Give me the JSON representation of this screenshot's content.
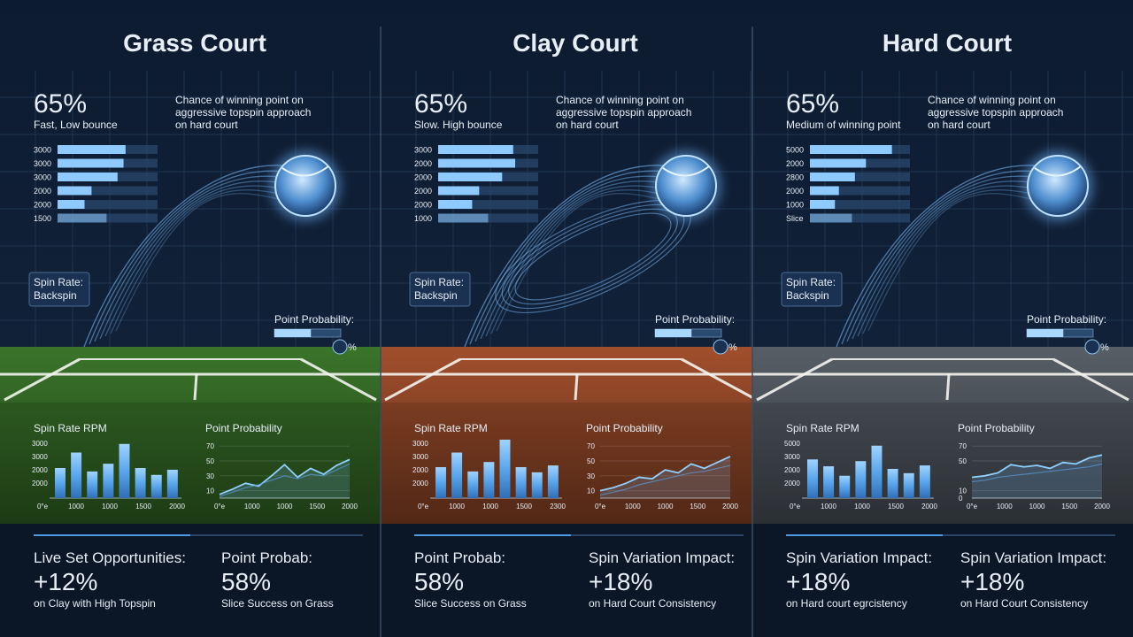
{
  "panels": [
    {
      "title": "Grass Court",
      "stat": "65%",
      "stat_caption": "Fast, Low bounce",
      "description": [
        "Chance of winning point on",
        "aggressive topspin approach",
        "on hard court"
      ],
      "surface_color": "#3d7a2c",
      "spin_bars": {
        "labels": [
          "3000",
          "3000",
          "3000",
          "2000",
          "2000",
          "1500"
        ],
        "values": [
          68,
          66,
          60,
          34,
          27,
          49
        ],
        "xlim": [
          0,
          100
        ]
      },
      "spin_box": {
        "label": "Spin Rate:",
        "value": "Backspin"
      },
      "probability": {
        "label": "Point Probability:",
        "value": 55,
        "unit": "%"
      },
      "bar_chart": {
        "title": "Spin Rate RPM",
        "ylabels": [
          "3000",
          "3000",
          "2000",
          "2000"
        ],
        "xlabels": [
          "0°e",
          "1000",
          "1000",
          "1500",
          "2000"
        ],
        "ylim": [
          0,
          70
        ],
        "values": [
          35,
          53,
          31,
          40,
          63,
          35,
          27,
          33
        ]
      },
      "line_chart": {
        "title": "Point Probability",
        "yticks": [
          70,
          50,
          30,
          10
        ],
        "ylim": [
          0,
          75
        ],
        "xlabels": [
          "0°e",
          "1000",
          "1000",
          "1500",
          "2000"
        ],
        "series": [
          {
            "values": [
              5,
              12,
              20,
              16,
              30,
              45,
              28,
              40,
              32,
              44,
              52
            ]
          },
          {
            "values": [
              2,
              8,
              14,
              18,
              24,
              30,
              26,
              32,
              30,
              38,
              46
            ]
          }
        ]
      },
      "stats": [
        {
          "label": "Live Set Opportunities:",
          "value": "+12%",
          "caption": "on Clay with High Topspin"
        },
        {
          "label": "Point Probab:",
          "value": "58%",
          "caption": "Slice Success on Grass"
        }
      ]
    },
    {
      "title": "Clay Court",
      "stat": "65%",
      "stat_caption": "Slow. High bounce",
      "description": [
        "Chance of winning point on",
        "aggressive topspin approach",
        "on hard court"
      ],
      "surface_color": "#a9532e",
      "spin_bars": {
        "labels": [
          "3000",
          "2000",
          "2000",
          "2000",
          "2000",
          "1000"
        ],
        "values": [
          75,
          77,
          64,
          41,
          34,
          50
        ],
        "xlim": [
          0,
          100
        ]
      },
      "spin_box": {
        "label": "Spin Rate:",
        "value": "Backspin"
      },
      "probability": {
        "label": "Point Probability:",
        "value": 55,
        "unit": "%"
      },
      "bar_chart": {
        "title": "Spin Rate RPM",
        "ylabels": [
          "3000",
          "3000",
          "2000",
          "2000"
        ],
        "xlabels": [
          "0°e",
          "1000",
          "1000",
          "1500",
          "2300"
        ],
        "ylim": [
          0,
          70
        ],
        "values": [
          36,
          53,
          31,
          42,
          68,
          36,
          30,
          38
        ]
      },
      "line_chart": {
        "title": "Point Probability",
        "yticks": [
          70,
          50,
          30,
          10
        ],
        "ylim": [
          0,
          75
        ],
        "xlabels": [
          "0°e",
          "1000",
          "1000",
          "1500",
          "2000"
        ],
        "series": [
          {
            "values": [
              10,
              14,
              20,
              28,
              26,
              38,
              34,
              46,
              40,
              48,
              56
            ]
          },
          {
            "values": [
              4,
              8,
              12,
              18,
              22,
              26,
              30,
              34,
              36,
              40,
              44
            ]
          }
        ]
      },
      "stats": [
        {
          "label": "Point Probab:",
          "value": "58%",
          "caption": "Slice Success on Grass"
        },
        {
          "label": "Spin Variation Impact:",
          "value": "+18%",
          "caption": "on Hard Court Consistency"
        }
      ]
    },
    {
      "title": "Hard Court",
      "stat": "65%",
      "stat_caption": "Medium of winning point",
      "description": [
        "Chance of winning point on",
        "aggressive topspin approach",
        "on hard court"
      ],
      "surface_color": "#5b636c",
      "spin_bars": {
        "labels": [
          "5000",
          "2000",
          "2800",
          "2000",
          "1000",
          "Slice"
        ],
        "values": [
          82,
          56,
          45,
          29,
          25,
          42
        ],
        "xlim": [
          0,
          100
        ]
      },
      "spin_box": {
        "label": "Spin Rate:",
        "value": "Backspin"
      },
      "probability": {
        "label": "Point Probability:",
        "value": 55,
        "unit": "%"
      },
      "bar_chart": {
        "title": "Spin Rate RPM",
        "ylabels": [
          "5000",
          "3000",
          "2000",
          "2000"
        ],
        "xlabels": [
          "0°e",
          "1000",
          "1000",
          "1500",
          "2000"
        ],
        "ylim": [
          0,
          70
        ],
        "values": [
          45,
          37,
          26,
          43,
          61,
          34,
          29,
          38
        ]
      },
      "line_chart": {
        "title": "Point Probability",
        "yticks": [
          70,
          50,
          10,
          0
        ],
        "ylim": [
          0,
          75
        ],
        "xlabels": [
          "0°e",
          "1000",
          "1000",
          "1500",
          "2000"
        ],
        "series": [
          {
            "values": [
              28,
              30,
              34,
              45,
              42,
              44,
              40,
              48,
              46,
              54,
              58
            ]
          },
          {
            "values": [
              22,
              24,
              28,
              30,
              32,
              34,
              36,
              38,
              40,
              42,
              46
            ]
          }
        ]
      },
      "stats": [
        {
          "label": "Spin Variation Impact:",
          "value": "+18%",
          "caption": "on Hard court egrcistency"
        },
        {
          "label": "Spin Variation Impact:",
          "value": "+18%",
          "caption": "on Hard Court Consistency"
        }
      ]
    }
  ]
}
